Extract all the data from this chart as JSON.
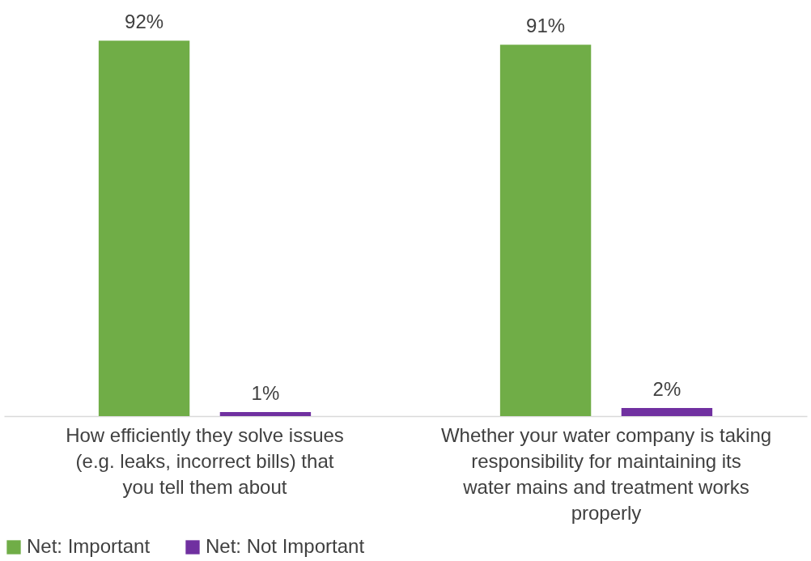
{
  "chart_data": {
    "type": "bar",
    "categories": [
      "How efficiently they solve issues (e.g. leaks, incorrect bills) that you tell them about",
      "Whether your water company is taking responsibility for maintaining its water mains and treatment works properly"
    ],
    "series": [
      {
        "name": "Net: Important",
        "color": "#70ad47",
        "values": [
          92,
          91
        ],
        "value_labels": [
          "92%",
          "91%"
        ]
      },
      {
        "name": "Net: Not Important",
        "color": "#7030a0",
        "values": [
          1,
          2
        ],
        "value_labels": [
          "1%",
          "2%"
        ]
      }
    ],
    "tick_labels": "x",
    "grid": false,
    "legend": "bottom"
  }
}
